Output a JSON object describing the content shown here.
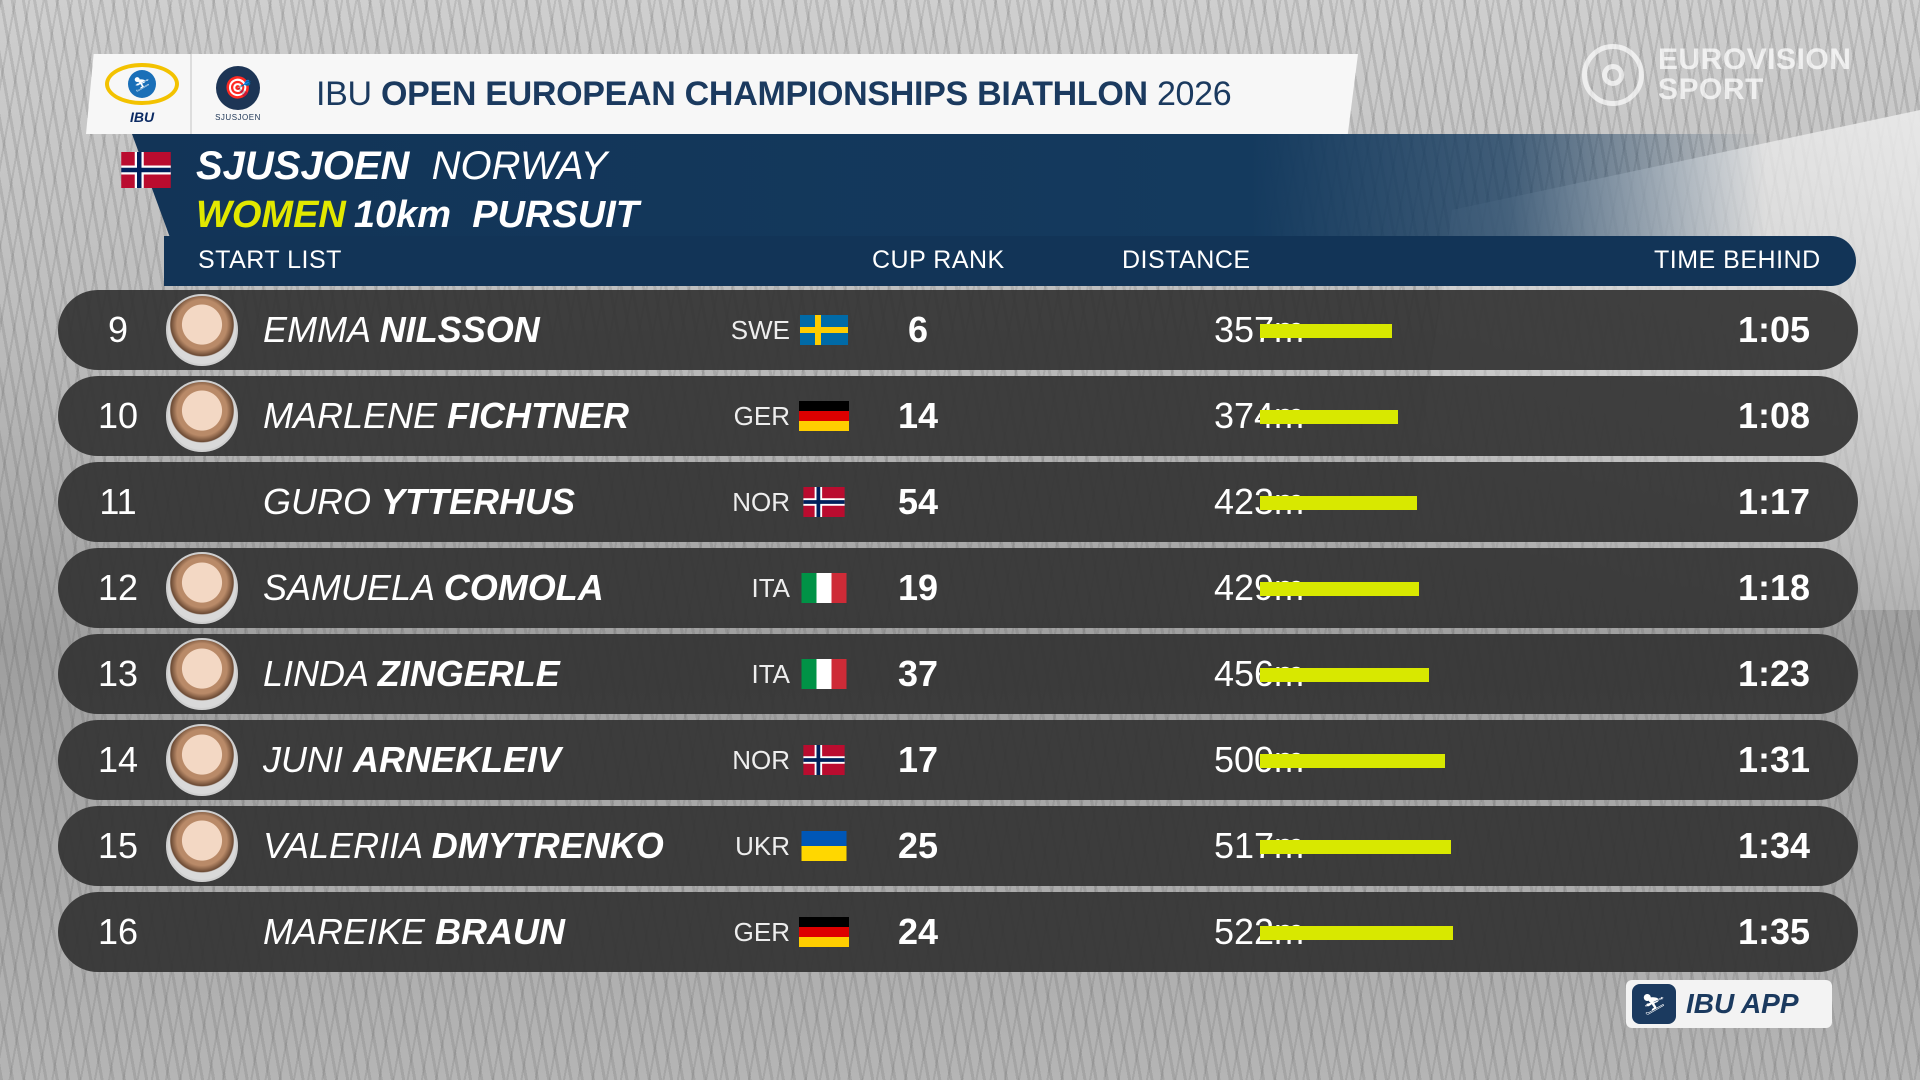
{
  "header": {
    "prefix": "IBU",
    "title_bold": "OPEN EUROPEAN CHAMPIONSHIPS BIATHLON",
    "year": "2026",
    "ibu_logo_text": "IBU",
    "sjusjoen_logo_text": "SJUSJOEN"
  },
  "broadcaster": {
    "line1": "EUROVISION",
    "line2": "SPORT"
  },
  "event": {
    "venue": "SJUSJOEN",
    "country": "NORWAY",
    "gender": "WOMEN",
    "distance": "10km",
    "format": "PURSUIT"
  },
  "columns": {
    "start_list": "START  LIST",
    "cup_rank": "CUP  RANK",
    "distance": "DISTANCE",
    "time_behind": "TIME  BEHIND"
  },
  "athletes": [
    {
      "bib": "9",
      "first": "EMMA",
      "last": "NILSSON",
      "nat": "SWE",
      "cup_rank": "6",
      "distance": "357m",
      "distance_m": 357,
      "time_behind": "1:05",
      "photo": true
    },
    {
      "bib": "10",
      "first": "MARLENE",
      "last": "FICHTNER",
      "nat": "GER",
      "cup_rank": "14",
      "distance": "374m",
      "distance_m": 374,
      "time_behind": "1:08",
      "photo": true
    },
    {
      "bib": "11",
      "first": "GURO",
      "last": "YTTERHUS",
      "nat": "NOR",
      "cup_rank": "54",
      "distance": "423m",
      "distance_m": 423,
      "time_behind": "1:17",
      "photo": false
    },
    {
      "bib": "12",
      "first": "SAMUELA",
      "last": "COMOLA",
      "nat": "ITA",
      "cup_rank": "19",
      "distance": "429m",
      "distance_m": 429,
      "time_behind": "1:18",
      "photo": true
    },
    {
      "bib": "13",
      "first": "LINDA",
      "last": "ZINGERLE",
      "nat": "ITA",
      "cup_rank": "37",
      "distance": "456m",
      "distance_m": 456,
      "time_behind": "1:23",
      "photo": true
    },
    {
      "bib": "14",
      "first": "JUNI",
      "last": "ARNEKLEIV",
      "nat": "NOR",
      "cup_rank": "17",
      "distance": "500m",
      "distance_m": 500,
      "time_behind": "1:31",
      "photo": true
    },
    {
      "bib": "15",
      "first": "VALERIIA",
      "last": "DMYTRENKO",
      "nat": "UKR",
      "cup_rank": "25",
      "distance": "517m",
      "distance_m": 517,
      "time_behind": "1:34",
      "photo": true
    },
    {
      "bib": "16",
      "first": "MAREIKE",
      "last": "BRAUN",
      "nat": "GER",
      "cup_rank": "24",
      "distance": "522m",
      "distance_m": 522,
      "time_behind": "1:35",
      "photo": false
    }
  ],
  "app_badge": {
    "label": "IBU APP",
    "icon": "ibu-app-icon"
  },
  "colors": {
    "navy": "#123457",
    "accent_yellow": "#e2e800",
    "bar_yellow": "#d8e800",
    "row_bg": "#343434"
  }
}
